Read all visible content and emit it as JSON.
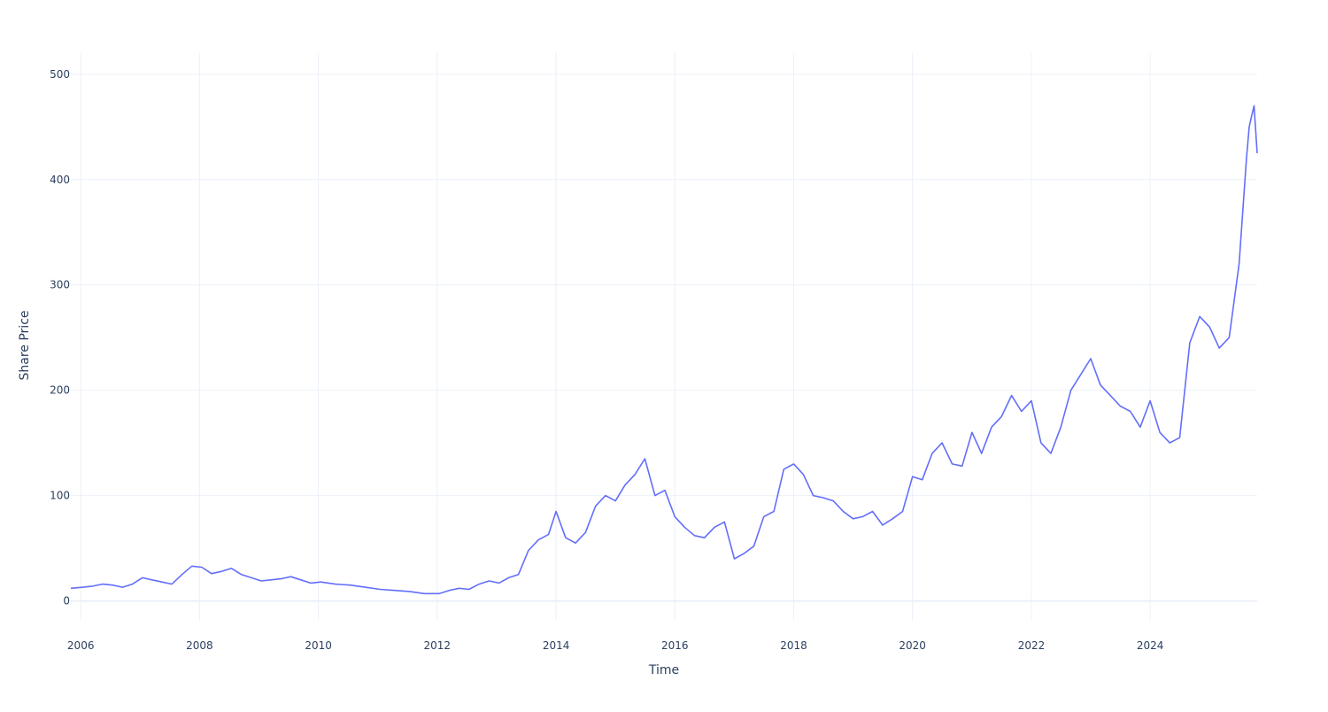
{
  "chart_data": {
    "type": "line",
    "title": "",
    "xlabel": "Time",
    "ylabel": "Share Price",
    "x_tick_labels": [
      "2006",
      "2008",
      "2010",
      "2012",
      "2014",
      "2016",
      "2018",
      "2020",
      "2022",
      "2024"
    ],
    "y_tick_labels": [
      "0",
      "100",
      "200",
      "300",
      "400",
      "500"
    ],
    "xlim": [
      "2005-11-01",
      "2025-10-20"
    ],
    "ylim": [
      -18,
      520
    ],
    "grid": true,
    "legend": "none",
    "colors": {
      "line": "#636efa",
      "grid": "#ebf0f8",
      "zeroline": "#ebf0f8",
      "text": "#2a3f5f"
    },
    "series": [
      {
        "x": [
          "2005-11-01",
          "2006-01-15",
          "2006-03-15",
          "2006-05-15",
          "2006-07-15",
          "2006-09-15",
          "2006-11-15",
          "2007-01-15",
          "2007-03-15",
          "2007-05-15",
          "2007-07-15",
          "2007-09-15",
          "2007-11-15",
          "2008-01-15",
          "2008-03-15",
          "2008-05-15",
          "2008-07-15",
          "2008-09-15",
          "2008-11-15",
          "2009-01-15",
          "2009-03-15",
          "2009-05-15",
          "2009-07-15",
          "2009-09-15",
          "2009-11-15",
          "2010-01-15",
          "2010-04-15",
          "2010-07-15",
          "2010-10-15",
          "2011-01-15",
          "2011-04-15",
          "2011-07-15",
          "2011-10-15",
          "2012-01-15",
          "2012-03-15",
          "2012-05-15",
          "2012-07-15",
          "2012-09-15",
          "2012-11-15",
          "2013-01-15",
          "2013-03-15",
          "2013-05-15",
          "2013-07-15",
          "2013-09-15",
          "2013-11-15",
          "2014-01-01",
          "2014-03-01",
          "2014-05-01",
          "2014-07-01",
          "2014-09-01",
          "2014-11-01",
          "2015-01-01",
          "2015-03-01",
          "2015-05-01",
          "2015-07-01",
          "2015-09-01",
          "2015-11-01",
          "2016-01-01",
          "2016-03-01",
          "2016-05-01",
          "2016-07-01",
          "2016-09-01",
          "2016-11-01",
          "2017-01-01",
          "2017-03-01",
          "2017-05-01",
          "2017-07-01",
          "2017-09-01",
          "2017-11-01",
          "2018-01-01",
          "2018-03-01",
          "2018-05-01",
          "2018-07-01",
          "2018-09-01",
          "2018-11-01",
          "2019-01-01",
          "2019-03-01",
          "2019-05-01",
          "2019-07-01",
          "2019-09-01",
          "2019-11-01",
          "2020-01-01",
          "2020-03-01",
          "2020-05-01",
          "2020-07-01",
          "2020-09-01",
          "2020-11-01",
          "2021-01-01",
          "2021-03-01",
          "2021-05-01",
          "2021-07-01",
          "2021-09-01",
          "2021-11-01",
          "2022-01-01",
          "2022-03-01",
          "2022-05-01",
          "2022-07-01",
          "2022-09-01",
          "2022-11-01",
          "2023-01-01",
          "2023-03-01",
          "2023-05-01",
          "2023-07-01",
          "2023-09-01",
          "2023-11-01",
          "2024-01-01",
          "2024-03-01",
          "2024-05-01",
          "2024-07-01",
          "2024-09-01",
          "2024-11-01",
          "2025-01-01",
          "2025-03-01",
          "2025-05-01",
          "2025-07-01",
          "2025-08-15",
          "2025-09-01",
          "2025-09-15",
          "2025-10-01",
          "2025-10-20"
        ],
        "y": [
          12,
          13,
          14,
          16,
          15,
          13,
          16,
          22,
          20,
          18,
          16,
          25,
          33,
          32,
          26,
          28,
          31,
          25,
          22,
          19,
          20,
          21,
          23,
          20,
          17,
          18,
          16,
          15,
          13,
          11,
          10,
          9,
          7,
          7,
          10,
          12,
          11,
          16,
          19,
          17,
          22,
          25,
          48,
          58,
          63,
          85,
          60,
          55,
          65,
          90,
          100,
          95,
          110,
          120,
          135,
          100,
          105,
          80,
          70,
          62,
          60,
          70,
          75,
          40,
          45,
          52,
          80,
          85,
          125,
          130,
          120,
          100,
          98,
          95,
          85,
          78,
          80,
          85,
          72,
          78,
          85,
          118,
          115,
          140,
          150,
          130,
          128,
          160,
          140,
          165,
          175,
          195,
          180,
          190,
          150,
          140,
          165,
          200,
          215,
          230,
          205,
          195,
          185,
          180,
          165,
          190,
          160,
          150,
          155,
          245,
          270,
          260,
          240,
          250,
          320,
          420,
          450,
          460,
          470,
          425
        ]
      }
    ]
  }
}
